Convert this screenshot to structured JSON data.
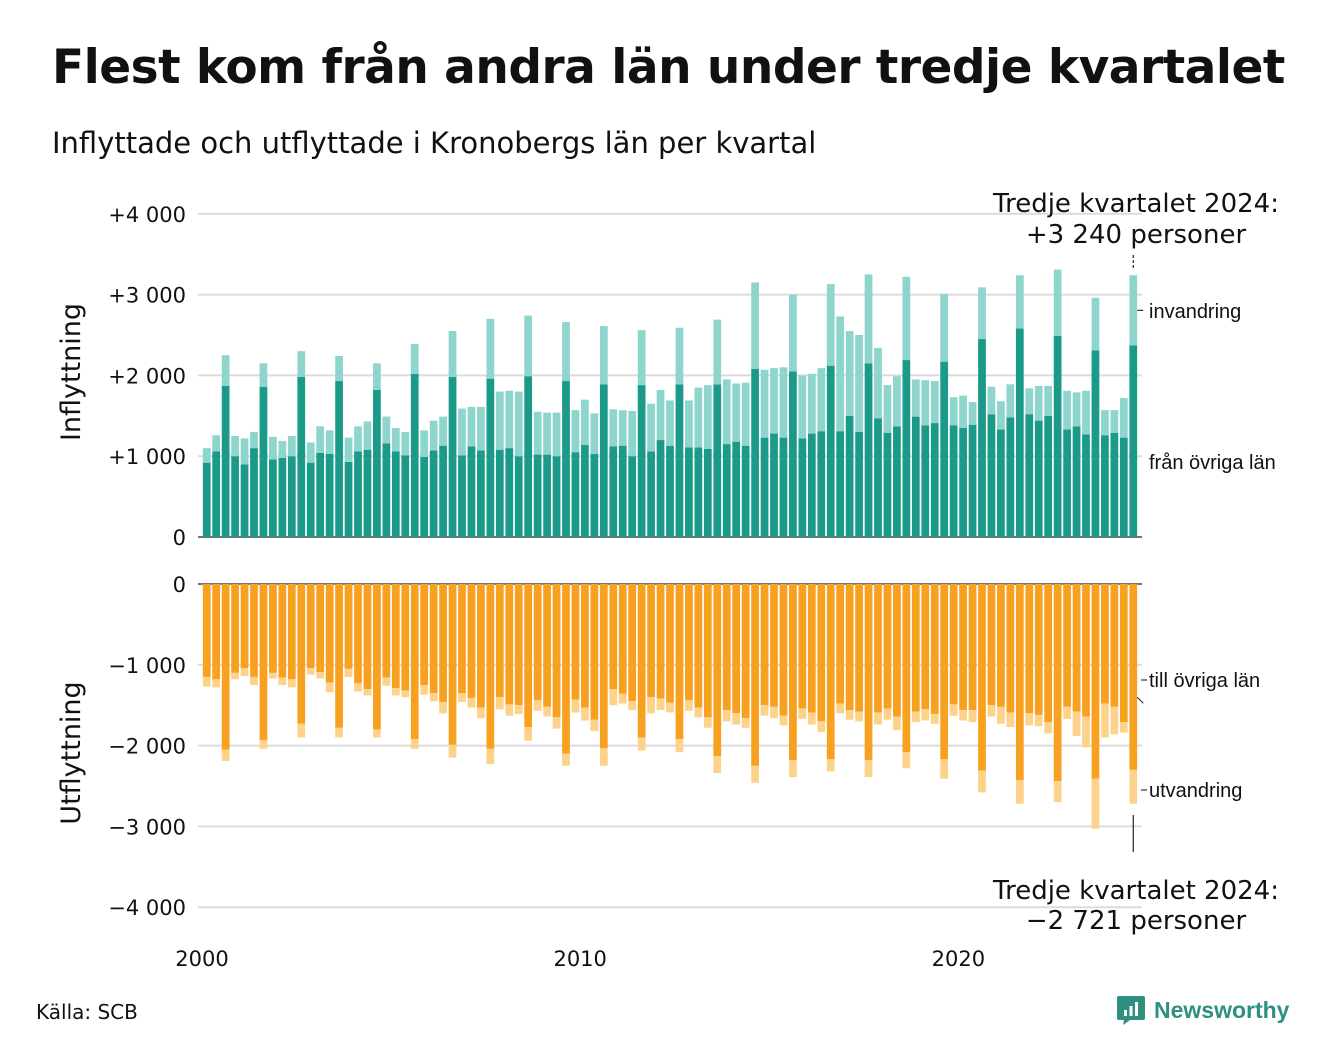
{
  "title": "Flest kom från andra län under tredje kvartalet",
  "subtitle": "Inflyttade och utflyttade i Kronobergs län per kvartal",
  "source": "Källa: SCB",
  "brand": "Newsworthy",
  "colors": {
    "fran_ovriga_lan": "#1b9a8a",
    "invandring": "#8ed6cd",
    "till_ovriga_lan": "#f8a01f",
    "utvandring": "#fdd38c",
    "grid": "#dcdcdc",
    "brand": "#2f8f80"
  },
  "chart_data": [
    {
      "type": "bar",
      "stacked": true,
      "ylabel": "Inflyttning",
      "ylim": [
        0,
        4000
      ],
      "yticks": [
        0,
        1000,
        2000,
        3000,
        4000
      ],
      "ytick_labels": [
        "0",
        "+1 000",
        "+2 000",
        "+3 000",
        "+4 000"
      ],
      "x_start": "2000 Q1",
      "x_end": "2024 Q3",
      "xticks": [
        "2000",
        "2010",
        "2020"
      ],
      "grid": true,
      "series": [
        {
          "name": "från övriga län",
          "color_key": "fran_ovriga_lan",
          "values": [
            920,
            1060,
            1870,
            1000,
            900,
            1100,
            1860,
            960,
            980,
            1000,
            1980,
            920,
            1040,
            1030,
            1930,
            930,
            1060,
            1080,
            1820,
            1160,
            1060,
            1010,
            2020,
            990,
            1070,
            1130,
            1980,
            1010,
            1120,
            1070,
            1960,
            1080,
            1100,
            1000,
            1990,
            1020,
            1020,
            1000,
            1930,
            1050,
            1140,
            1030,
            1890,
            1120,
            1130,
            1000,
            1880,
            1060,
            1200,
            1130,
            1890,
            1110,
            1110,
            1090,
            1890,
            1150,
            1180,
            1130,
            2080,
            1230,
            1280,
            1230,
            2050,
            1220,
            1280,
            1310,
            2120,
            1310,
            1500,
            1300,
            2150,
            1470,
            1290,
            1370,
            2190,
            1490,
            1380,
            1410,
            2170,
            1380,
            1350,
            1390,
            2450,
            1520,
            1330,
            1480,
            2580,
            1520,
            1440,
            1500,
            2490,
            1330,
            1370,
            1270,
            2310,
            1260,
            1290,
            1230,
            2370
          ]
        },
        {
          "name": "invandring",
          "color_key": "invandring",
          "values": [
            180,
            200,
            380,
            250,
            320,
            200,
            290,
            280,
            210,
            250,
            320,
            250,
            330,
            290,
            310,
            300,
            310,
            350,
            330,
            330,
            290,
            290,
            370,
            330,
            370,
            360,
            570,
            580,
            490,
            540,
            740,
            720,
            710,
            800,
            750,
            530,
            520,
            540,
            730,
            520,
            560,
            500,
            720,
            460,
            440,
            560,
            680,
            590,
            620,
            560,
            700,
            580,
            740,
            790,
            800,
            800,
            720,
            780,
            1070,
            840,
            810,
            870,
            950,
            780,
            740,
            780,
            1010,
            1420,
            1050,
            1200,
            1100,
            870,
            590,
            620,
            1030,
            460,
            560,
            520,
            840,
            350,
            400,
            280,
            640,
            340,
            350,
            410,
            660,
            320,
            430,
            370,
            820,
            480,
            420,
            540,
            650,
            310,
            280,
            490,
            870
          ]
        },
        {
          "name": "total_label",
          "values": [
            3240
          ],
          "label": "Tredje kvartalet 2024:",
          "label_value": "+3 240 personer"
        }
      ]
    },
    {
      "type": "bar",
      "stacked": true,
      "ylabel": "Utflyttning",
      "ylim": [
        -4000,
        0
      ],
      "yticks": [
        0,
        -1000,
        -2000,
        -3000,
        -4000
      ],
      "ytick_labels": [
        "0",
        "−1 000",
        "−2 000",
        "−3 000",
        "−4 000"
      ],
      "x_start": "2000 Q1",
      "x_end": "2024 Q3",
      "xticks": [
        "2000",
        "2010",
        "2020"
      ],
      "grid": true,
      "series": [
        {
          "name": "till övriga län",
          "color_key": "till_ovriga_lan",
          "values": [
            -1150,
            -1180,
            -2050,
            -1100,
            -1040,
            -1150,
            -1930,
            -1100,
            -1160,
            -1180,
            -1730,
            -1040,
            -1090,
            -1220,
            -1780,
            -1050,
            -1230,
            -1300,
            -1800,
            -1160,
            -1290,
            -1320,
            -1920,
            -1250,
            -1350,
            -1460,
            -1990,
            -1350,
            -1410,
            -1530,
            -2040,
            -1400,
            -1490,
            -1500,
            -1770,
            -1440,
            -1520,
            -1650,
            -2100,
            -1430,
            -1530,
            -1680,
            -2030,
            -1300,
            -1360,
            -1450,
            -1900,
            -1400,
            -1420,
            -1470,
            -1920,
            -1440,
            -1530,
            -1650,
            -2130,
            -1560,
            -1600,
            -1660,
            -2250,
            -1500,
            -1520,
            -1630,
            -2180,
            -1540,
            -1590,
            -1700,
            -2170,
            -1480,
            -1560,
            -1580,
            -2180,
            -1590,
            -1540,
            -1640,
            -2080,
            -1580,
            -1550,
            -1610,
            -2170,
            -1490,
            -1560,
            -1560,
            -2310,
            -1500,
            -1520,
            -1590,
            -2430,
            -1600,
            -1620,
            -1710,
            -2440,
            -1520,
            -1580,
            -1640,
            -2410,
            -1480,
            -1520,
            -1710,
            -2300
          ]
        },
        {
          "name": "utvandring",
          "color_key": "utvandring",
          "values": [
            -120,
            -100,
            -140,
            -80,
            -100,
            -100,
            -110,
            -70,
            -90,
            -100,
            -170,
            -80,
            -80,
            -120,
            -120,
            -100,
            -100,
            -80,
            -100,
            -100,
            -90,
            -80,
            -120,
            -120,
            -100,
            -140,
            -160,
            -110,
            -120,
            -130,
            -190,
            -150,
            -140,
            -110,
            -170,
            -130,
            -120,
            -140,
            -150,
            -160,
            -160,
            -140,
            -220,
            -200,
            -120,
            -110,
            -160,
            -200,
            -140,
            -120,
            -160,
            -130,
            -120,
            -130,
            -210,
            -140,
            -140,
            -120,
            -210,
            -130,
            -140,
            -120,
            -210,
            -130,
            -150,
            -130,
            -150,
            -120,
            -120,
            -120,
            -210,
            -150,
            -140,
            -170,
            -200,
            -130,
            -140,
            -120,
            -240,
            -140,
            -130,
            -150,
            -270,
            -140,
            -210,
            -180,
            -290,
            -150,
            -140,
            -140,
            -260,
            -150,
            -300,
            -380,
            -620,
            -420,
            -340,
            -130,
            -420
          ]
        },
        {
          "name": "total_label",
          "values": [
            -2721
          ],
          "label": "Tredje kvartalet 2024:",
          "label_value": "−2 721 personer"
        }
      ]
    }
  ]
}
